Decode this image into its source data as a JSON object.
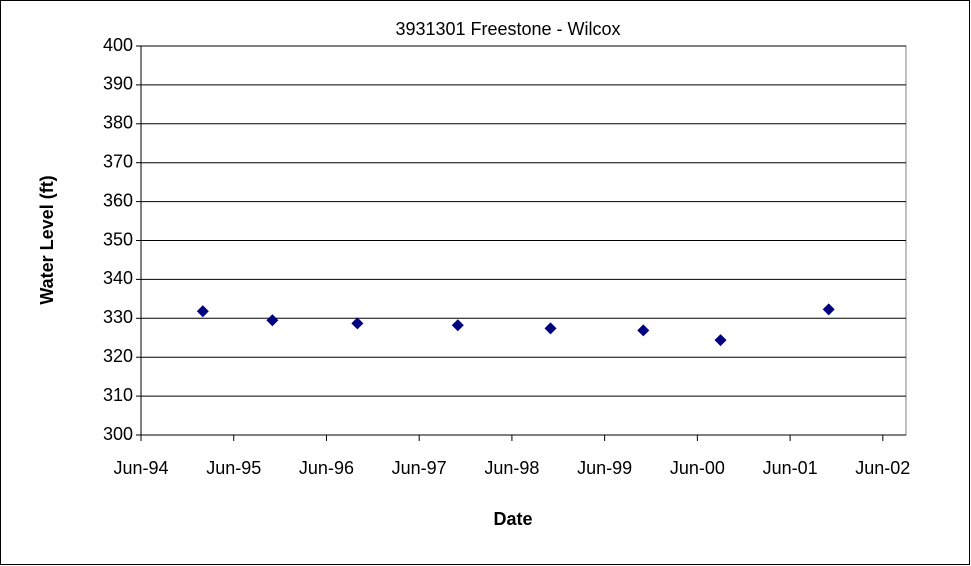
{
  "chart_data": {
    "type": "scatter",
    "title": "3931301 Freestone - Wilcox",
    "xlabel": "Date",
    "ylabel": "Water Level (ft)",
    "series": [
      {
        "name": "3931301",
        "color": "#000080",
        "x": [
          "1995-02",
          "1995-11",
          "1996-10",
          "1997-11",
          "1998-11",
          "1999-11",
          "2000-09",
          "2001-11"
        ],
        "values": [
          331.8,
          329.5,
          328.7,
          328.2,
          327.4,
          326.9,
          324.4,
          332.3
        ]
      }
    ],
    "xlim": [
      "1994-06",
      "2002-09"
    ],
    "xticks": [
      {
        "value": "1994-06",
        "label": "Jun-94"
      },
      {
        "value": "1995-06",
        "label": "Jun-95"
      },
      {
        "value": "1996-06",
        "label": "Jun-96"
      },
      {
        "value": "1997-06",
        "label": "Jun-97"
      },
      {
        "value": "1998-06",
        "label": "Jun-98"
      },
      {
        "value": "1999-06",
        "label": "Jun-99"
      },
      {
        "value": "2000-06",
        "label": "Jun-00"
      },
      {
        "value": "2001-06",
        "label": "Jun-01"
      },
      {
        "value": "2002-06",
        "label": "Jun-02"
      }
    ],
    "ylim": [
      300,
      400
    ],
    "yticks": [
      300,
      310,
      320,
      330,
      340,
      350,
      360,
      370,
      380,
      390,
      400
    ],
    "grid": true
  }
}
